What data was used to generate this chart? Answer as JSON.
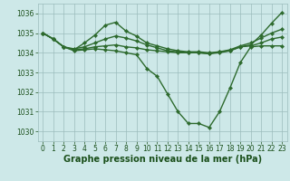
{
  "lines": [
    {
      "x": [
        0,
        1,
        2,
        3,
        4,
        5,
        6,
        7,
        8,
        9,
        10,
        11,
        12,
        13,
        14,
        15,
        16,
        17,
        18,
        19,
        20,
        21,
        22,
        23
      ],
      "y": [
        1035.0,
        1034.7,
        1034.3,
        1034.1,
        1034.15,
        1034.2,
        1034.15,
        1034.1,
        1034.0,
        1033.9,
        1033.2,
        1032.8,
        1031.9,
        1031.0,
        1030.4,
        1030.4,
        1030.2,
        1031.0,
        1032.2,
        1033.5,
        1034.3,
        1034.35,
        1034.35,
        1034.35
      ]
    },
    {
      "x": [
        0,
        1,
        2,
        3,
        4,
        5,
        6,
        7,
        8,
        9,
        10,
        11,
        12,
        13,
        14,
        15,
        16,
        17,
        18,
        19,
        20,
        21,
        22,
        23
      ],
      "y": [
        1035.0,
        1034.7,
        1034.3,
        1034.15,
        1034.5,
        1034.9,
        1035.4,
        1035.55,
        1035.1,
        1034.85,
        1034.5,
        1034.35,
        1034.2,
        1034.1,
        1034.05,
        1034.05,
        1034.0,
        1034.05,
        1034.1,
        1034.3,
        1034.4,
        1034.9,
        1035.5,
        1036.05
      ]
    },
    {
      "x": [
        0,
        1,
        2,
        3,
        4,
        5,
        6,
        7,
        8,
        9,
        10,
        11,
        12,
        13,
        14,
        15,
        16,
        17,
        18,
        19,
        20,
        21,
        22,
        23
      ],
      "y": [
        1035.0,
        1034.7,
        1034.3,
        1034.15,
        1034.2,
        1034.3,
        1034.35,
        1034.4,
        1034.3,
        1034.25,
        1034.15,
        1034.1,
        1034.05,
        1034.0,
        1034.0,
        1034.0,
        1033.95,
        1034.0,
        1034.1,
        1034.3,
        1034.35,
        1034.5,
        1034.7,
        1034.8
      ]
    },
    {
      "x": [
        0,
        1,
        2,
        3,
        4,
        5,
        6,
        7,
        8,
        9,
        10,
        11,
        12,
        13,
        14,
        15,
        16,
        17,
        18,
        19,
        20,
        21,
        22,
        23
      ],
      "y": [
        1035.0,
        1034.7,
        1034.3,
        1034.2,
        1034.3,
        1034.5,
        1034.7,
        1034.85,
        1034.75,
        1034.6,
        1034.4,
        1034.25,
        1034.1,
        1034.05,
        1034.0,
        1034.0,
        1033.95,
        1034.05,
        1034.15,
        1034.35,
        1034.5,
        1034.75,
        1035.0,
        1035.2
      ]
    }
  ],
  "line_color": "#2d6a2d",
  "marker": "D",
  "marker_size": 2.2,
  "line_width": 1.0,
  "bg_color": "#cde8e8",
  "grid_color": "#9bbcbc",
  "xlim": [
    -0.5,
    23.5
  ],
  "ylim": [
    1029.5,
    1036.5
  ],
  "yticks": [
    1030,
    1031,
    1032,
    1033,
    1034,
    1035,
    1036
  ],
  "xticks": [
    0,
    1,
    2,
    3,
    4,
    5,
    6,
    7,
    8,
    9,
    10,
    11,
    12,
    13,
    14,
    15,
    16,
    17,
    18,
    19,
    20,
    21,
    22,
    23
  ],
  "xlabel": "Graphe pression niveau de la mer (hPa)",
  "xlabel_fontsize": 7,
  "tick_fontsize": 5.5,
  "tick_color": "#1a4f1a"
}
